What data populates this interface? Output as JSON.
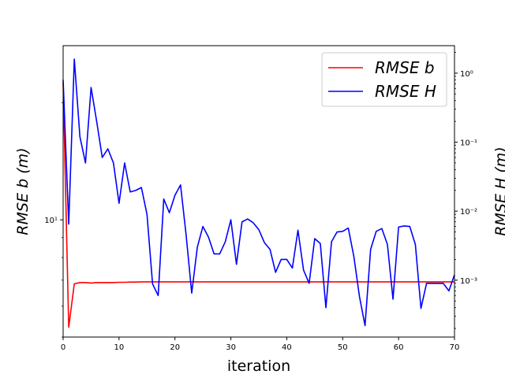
{
  "chart_data": {
    "type": "line",
    "title": "",
    "xlabel": "iteration",
    "ylabel_left": "RMSE b (m)",
    "ylabel_right": "RMSE H (m)",
    "xlim": [
      0,
      70
    ],
    "xticks": [
      0,
      10,
      20,
      30,
      40,
      50,
      60,
      70
    ],
    "left_axis": {
      "scale": "log",
      "ylim": [
        5.0,
        28.0
      ],
      "tick_labels": [
        {
          "value": 10,
          "label": "10¹"
        }
      ]
    },
    "right_axis": {
      "scale": "log",
      "ylim": [
        0.00015,
        2.5
      ],
      "tick_labels": [
        {
          "value": 0.001,
          "label": "10⁻³"
        },
        {
          "value": 0.01,
          "label": "10⁻²"
        },
        {
          "value": 0.1,
          "label": "10⁻¹"
        },
        {
          "value": 1,
          "label": "10⁰"
        }
      ]
    },
    "legend_position": "upper right",
    "grid": false,
    "series": [
      {
        "name": "RMSE b",
        "axis": "left",
        "color": "#ff0000",
        "x": [
          0,
          1,
          2,
          3,
          4,
          5,
          6,
          7,
          8,
          9,
          10,
          11,
          12,
          13,
          14,
          15,
          16,
          17,
          18,
          19,
          20,
          21,
          22,
          23,
          24,
          25,
          26,
          27,
          28,
          29,
          30,
          31,
          32,
          33,
          34,
          35,
          36,
          37,
          38,
          39,
          40,
          41,
          42,
          43,
          44,
          45,
          46,
          47,
          48,
          49,
          50,
          51,
          52,
          53,
          54,
          55,
          56,
          57,
          58,
          59,
          60,
          61,
          62,
          63,
          64,
          65,
          66,
          67,
          68,
          69,
          70
        ],
        "y": [
          22.5,
          5.3,
          6.85,
          6.9,
          6.9,
          6.88,
          6.9,
          6.9,
          6.9,
          6.9,
          6.91,
          6.91,
          6.92,
          6.92,
          6.93,
          6.93,
          6.93,
          6.93,
          6.93,
          6.93,
          6.93,
          6.93,
          6.93,
          6.93,
          6.93,
          6.93,
          6.93,
          6.93,
          6.93,
          6.93,
          6.93,
          6.93,
          6.93,
          6.93,
          6.93,
          6.93,
          6.93,
          6.93,
          6.93,
          6.93,
          6.93,
          6.93,
          6.93,
          6.93,
          6.93,
          6.93,
          6.93,
          6.93,
          6.93,
          6.93,
          6.93,
          6.93,
          6.93,
          6.93,
          6.93,
          6.93,
          6.93,
          6.93,
          6.93,
          6.93,
          6.93,
          6.93,
          6.93,
          6.93,
          6.93,
          6.93,
          6.93,
          6.93,
          6.93,
          6.93,
          6.93
        ]
      },
      {
        "name": "RMSE H",
        "axis": "right",
        "color": "#0000ff",
        "x": [
          0,
          1,
          2,
          3,
          4,
          5,
          6,
          7,
          8,
          9,
          10,
          11,
          12,
          13,
          14,
          15,
          16,
          17,
          18,
          19,
          20,
          21,
          22,
          23,
          24,
          25,
          26,
          27,
          28,
          29,
          30,
          31,
          32,
          33,
          34,
          35,
          36,
          37,
          38,
          39,
          40,
          41,
          42,
          43,
          44,
          45,
          46,
          47,
          48,
          49,
          50,
          51,
          52,
          53,
          54,
          55,
          56,
          57,
          58,
          59,
          60,
          61,
          62,
          63,
          64,
          65,
          66,
          67,
          68,
          69,
          70
        ],
        "y": [
          0.8,
          0.0065,
          1.6,
          0.12,
          0.05,
          0.62,
          0.2,
          0.06,
          0.08,
          0.05,
          0.013,
          0.05,
          0.019,
          0.02,
          0.022,
          0.009,
          0.00088,
          0.0006,
          0.015,
          0.0095,
          0.017,
          0.024,
          0.0045,
          0.00065,
          0.003,
          0.006,
          0.0042,
          0.0024,
          0.0024,
          0.0036,
          0.0075,
          0.0017,
          0.007,
          0.0077,
          0.0068,
          0.0054,
          0.0035,
          0.0028,
          0.0013,
          0.002,
          0.002,
          0.0015,
          0.0053,
          0.0014,
          0.0009,
          0.004,
          0.0034,
          0.0004,
          0.0036,
          0.005,
          0.0051,
          0.0057,
          0.0022,
          0.00058,
          0.00022,
          0.0028,
          0.0051,
          0.0056,
          0.0033,
          0.00053,
          0.0059,
          0.0061,
          0.006,
          0.0033,
          0.00039,
          0.0009,
          0.0009,
          0.0009,
          0.0009,
          0.0007,
          0.0012
        ]
      }
    ]
  }
}
